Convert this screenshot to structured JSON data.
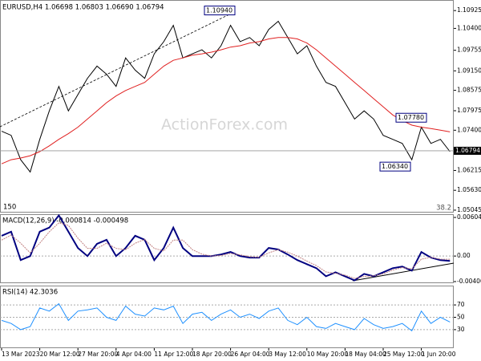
{
  "chart_data": [
    {
      "type": "line",
      "title": "EURUSD,H4  1.06698 1.06803 1.06690 1.06794",
      "watermark": "ActionForex.com",
      "series": [
        {
          "color": "#000000",
          "values": [
            1.0737,
            1.0725,
            1.0653,
            1.0617,
            1.0713,
            1.0797,
            1.0869,
            1.0797,
            1.0845,
            1.0893,
            1.0929,
            1.0905,
            1.0869,
            1.0953,
            1.0917,
            1.0893,
            1.0965,
            1.1001,
            1.1049,
            1.0953,
            1.0965,
            1.0977,
            1.0953,
            1.0989,
            1.1049,
            1.1001,
            1.1013,
            1.0989,
            1.1037,
            1.1061,
            1.1013,
            1.0965,
            1.0989,
            1.0929,
            1.0881,
            1.0869,
            1.0821,
            1.0773,
            1.0797,
            1.0773,
            1.0725,
            1.0713,
            1.0701,
            1.0653,
            1.0749,
            1.0701,
            1.0713,
            1.0677
          ]
        },
        {
          "color": "#e02020",
          "values": [
            1.0641,
            1.0653,
            1.0658,
            1.0665,
            1.0677,
            1.0694,
            1.0713,
            1.073,
            1.0749,
            1.0773,
            1.0797,
            1.0821,
            1.0841,
            1.0857,
            1.0869,
            1.0881,
            1.0905,
            1.0929,
            1.0946,
            1.0953,
            1.0961,
            1.0965,
            1.097,
            1.0977,
            1.0985,
            1.0989,
            1.0997,
            1.1001,
            1.1009,
            1.1013,
            1.1013,
            1.1009,
            1.0997,
            1.0977,
            1.0953,
            1.0929,
            1.0905,
            1.0881,
            1.0857,
            1.0833,
            1.0809,
            1.0785,
            1.0769,
            1.0755,
            1.0749,
            1.0745,
            1.074,
            1.0735
          ]
        }
      ],
      "ylim": [
        1.04973,
        1.11213
      ],
      "yticks": [
        1.10925,
        {
          "value": 1.104,
          "label": "1.10400"
        },
        1.09755,
        {
          "value": 1.0915,
          "label": "1.09150"
        },
        1.08575,
        1.07975,
        {
          "value": 1.074,
          "label": "1.07400"
        },
        1.06215,
        {
          "value": 1.0563,
          "label": "1.05630"
        },
        1.05045
      ],
      "last_price": 1.06794,
      "annotations": [
        {
          "value": 1.1094,
          "label": "1.10940"
        },
        {
          "value": 1.0778,
          "label": "1.07780"
        },
        {
          "value": 1.0634,
          "label": "1.06340"
        }
      ],
      "edge_label": "150",
      "fib_label": "38.2"
    },
    {
      "type": "line",
      "title": "MACD(12,26,9) -0.000814 -0.000498",
      "series": [
        {
          "color": "#000080",
          "values": [
            0.00318,
            0.00382,
            -0.00064,
            0,
            0.00382,
            0.00446,
            0.00637,
            0.00382,
            0.00127,
            0,
            0.00191,
            0.00255,
            0,
            0.00127,
            0.00318,
            0.00255,
            -0.00064,
            0.00127,
            0.00446,
            0.00127,
            0,
            0,
            0,
            0.00025,
            0.00064,
            0,
            -0.00025,
            -0.00025,
            0.00127,
            0.00102,
            0.00025,
            -0.00064,
            -0.00127,
            -0.00191,
            -0.00318,
            -0.00255,
            -0.00318,
            -0.00382,
            -0.0028,
            -0.00318,
            -0.00255,
            -0.00191,
            -0.00165,
            -0.00229,
            0.00064,
            -0.00025,
            -0.00064,
            -0.00076
          ]
        },
        {
          "color": "#c08080",
          "values": [
            0.0025,
            0.0033,
            0.002,
            0.0005,
            0.002,
            0.0038,
            0.0052,
            0.0048,
            0.0028,
            0.0012,
            0.0012,
            0.002,
            0.0012,
            0.001,
            0.002,
            0.0026,
            0.0012,
            0.0008,
            0.0025,
            0.0025,
            0.001,
            0.0003,
            0,
            0.0001,
            0.0004,
            0.0002,
            -0.0001,
            -0.0002,
            0.0005,
            0.001,
            0.0006,
            0,
            -0.0008,
            -0.0015,
            -0.0025,
            -0.0027,
            -0.003,
            -0.0035,
            -0.0032,
            -0.0031,
            -0.0028,
            -0.0022,
            -0.0018,
            -0.002,
            -0.0005,
            -0.0002,
            -0.0005,
            -0.0005
          ]
        }
      ],
      "ylim": [
        -0.004255,
        0.006431
      ],
      "yticks": [
        0.006049,
        {
          "value": 0,
          "label": "0.00"
        },
        -0.004005
      ]
    },
    {
      "type": "line",
      "title": "RSI(14) 42.3036",
      "categories": [
        "13 Mar 2023",
        null,
        null,
        null,
        "20 Mar 12:00",
        null,
        null,
        null,
        "27 Mar 20:00",
        null,
        null,
        null,
        "4 Apr 04:00",
        null,
        null,
        null,
        "11 Apr 12:00",
        null,
        null,
        null,
        "18 Apr 20:00",
        null,
        null,
        null,
        "26 Apr 04:00",
        null,
        null,
        null,
        "3 May 12:00",
        null,
        null,
        null,
        "10 May 20:00",
        null,
        null,
        null,
        "18 May 04:00",
        null,
        null,
        null,
        "25 May 12:00",
        null,
        null,
        null,
        "1 Jun 20:00",
        null,
        null,
        null
      ],
      "series": [
        {
          "color": "#1e90ff",
          "values": [
            45,
            40,
            30,
            35,
            65,
            60,
            72,
            45,
            60,
            62,
            65,
            50,
            45,
            68,
            55,
            52,
            65,
            62,
            68,
            40,
            55,
            58,
            45,
            55,
            62,
            50,
            55,
            48,
            60,
            65,
            45,
            38,
            50,
            35,
            32,
            40,
            35,
            30,
            48,
            38,
            32,
            35,
            40,
            28,
            60,
            40,
            50,
            42.3036
          ]
        }
      ],
      "ylim": [
        0,
        100
      ],
      "yticks": [
        30,
        50,
        70
      ]
    }
  ]
}
